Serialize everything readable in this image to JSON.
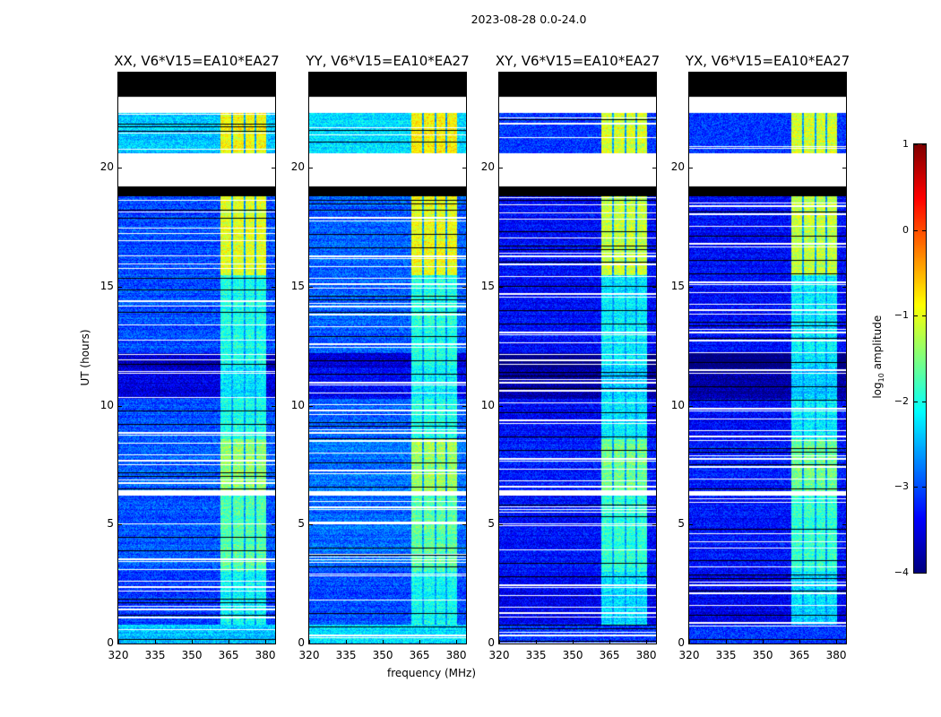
{
  "chart_data": {
    "type": "heatmap",
    "title": "2023-08-28 0.0-24.0",
    "xlabel": "frequency (MHz)",
    "ylabel": "UT (hours)",
    "xlim": [
      320,
      384
    ],
    "ylim": [
      0,
      24
    ],
    "xticks": [
      "320",
      "335",
      "350",
      "365",
      "380"
    ],
    "xtick_values": [
      320,
      335,
      350,
      365,
      380
    ],
    "yticks": [
      "0",
      "5",
      "10",
      "15",
      "20"
    ],
    "ytick_values": [
      0,
      5,
      10,
      15,
      20
    ],
    "colorbar": {
      "label_main": "log",
      "label_sub": "10",
      "label_rest": " amplitude",
      "range": [
        -4,
        1
      ],
      "ticks": [
        "1",
        "0",
        "−1",
        "−2",
        "−3",
        "−4"
      ],
      "tick_values": [
        1,
        0,
        -1,
        -2,
        -3,
        -4
      ],
      "colormap": "jet"
    },
    "rfi_channels_mhz": [
      [
        361.5,
        366
      ],
      [
        366.8,
        371
      ],
      [
        371.8,
        375.5
      ],
      [
        376.2,
        380
      ]
    ],
    "segments": [
      {
        "ut": [
          0.0,
          0.8
        ],
        "kind": "data",
        "level": -2.4
      },
      {
        "ut": [
          0.8,
          3.0
        ],
        "kind": "data",
        "level": -3.1,
        "rfi": -2.1
      },
      {
        "ut": [
          3.0,
          6.2
        ],
        "kind": "data",
        "level": -2.95,
        "rfi": -1.7
      },
      {
        "ut": [
          6.2,
          6.4
        ],
        "kind": "gap"
      },
      {
        "ut": [
          6.4,
          8.6
        ],
        "kind": "data",
        "level": -2.9,
        "rfi": -1.4
      },
      {
        "ut": [
          8.6,
          10.3
        ],
        "kind": "data",
        "level": -3.0,
        "rfi": -2.0
      },
      {
        "ut": [
          10.3,
          11.6
        ],
        "kind": "data",
        "level": -3.5,
        "rfi": -2.2
      },
      {
        "ut": [
          11.6,
          12.2
        ],
        "kind": "data",
        "level": -3.7,
        "rfi": -2.0
      },
      {
        "ut": [
          12.2,
          15.5
        ],
        "kind": "data",
        "level": -3.0,
        "rfi": -2.0
      },
      {
        "ut": [
          15.5,
          18.8
        ],
        "kind": "data",
        "level": -3.0,
        "rfi": -1.0
      },
      {
        "ut": [
          18.8,
          19.2
        ],
        "kind": "black"
      },
      {
        "ut": [
          19.2,
          20.6
        ],
        "kind": "gap"
      },
      {
        "ut": [
          20.6,
          22.3
        ],
        "kind": "data",
        "level": -2.4,
        "rfi": -0.9
      },
      {
        "ut": [
          22.3,
          23.0
        ],
        "kind": "gap"
      },
      {
        "ut": [
          23.0,
          24.0
        ],
        "kind": "black"
      }
    ],
    "panels": [
      {
        "title": "XX, V6*V15=EA10*EA27",
        "offset": 0.0,
        "cyan_top": true
      },
      {
        "title": "YY, V6*V15=EA10*EA27",
        "offset": 0.1,
        "cyan_top": true
      },
      {
        "title": "XY, V6*V15=EA10*EA27",
        "offset": -0.35,
        "cyan_top": false
      },
      {
        "title": "YX, V6*V15=EA10*EA27",
        "offset": -0.35,
        "cyan_top": false
      }
    ]
  }
}
